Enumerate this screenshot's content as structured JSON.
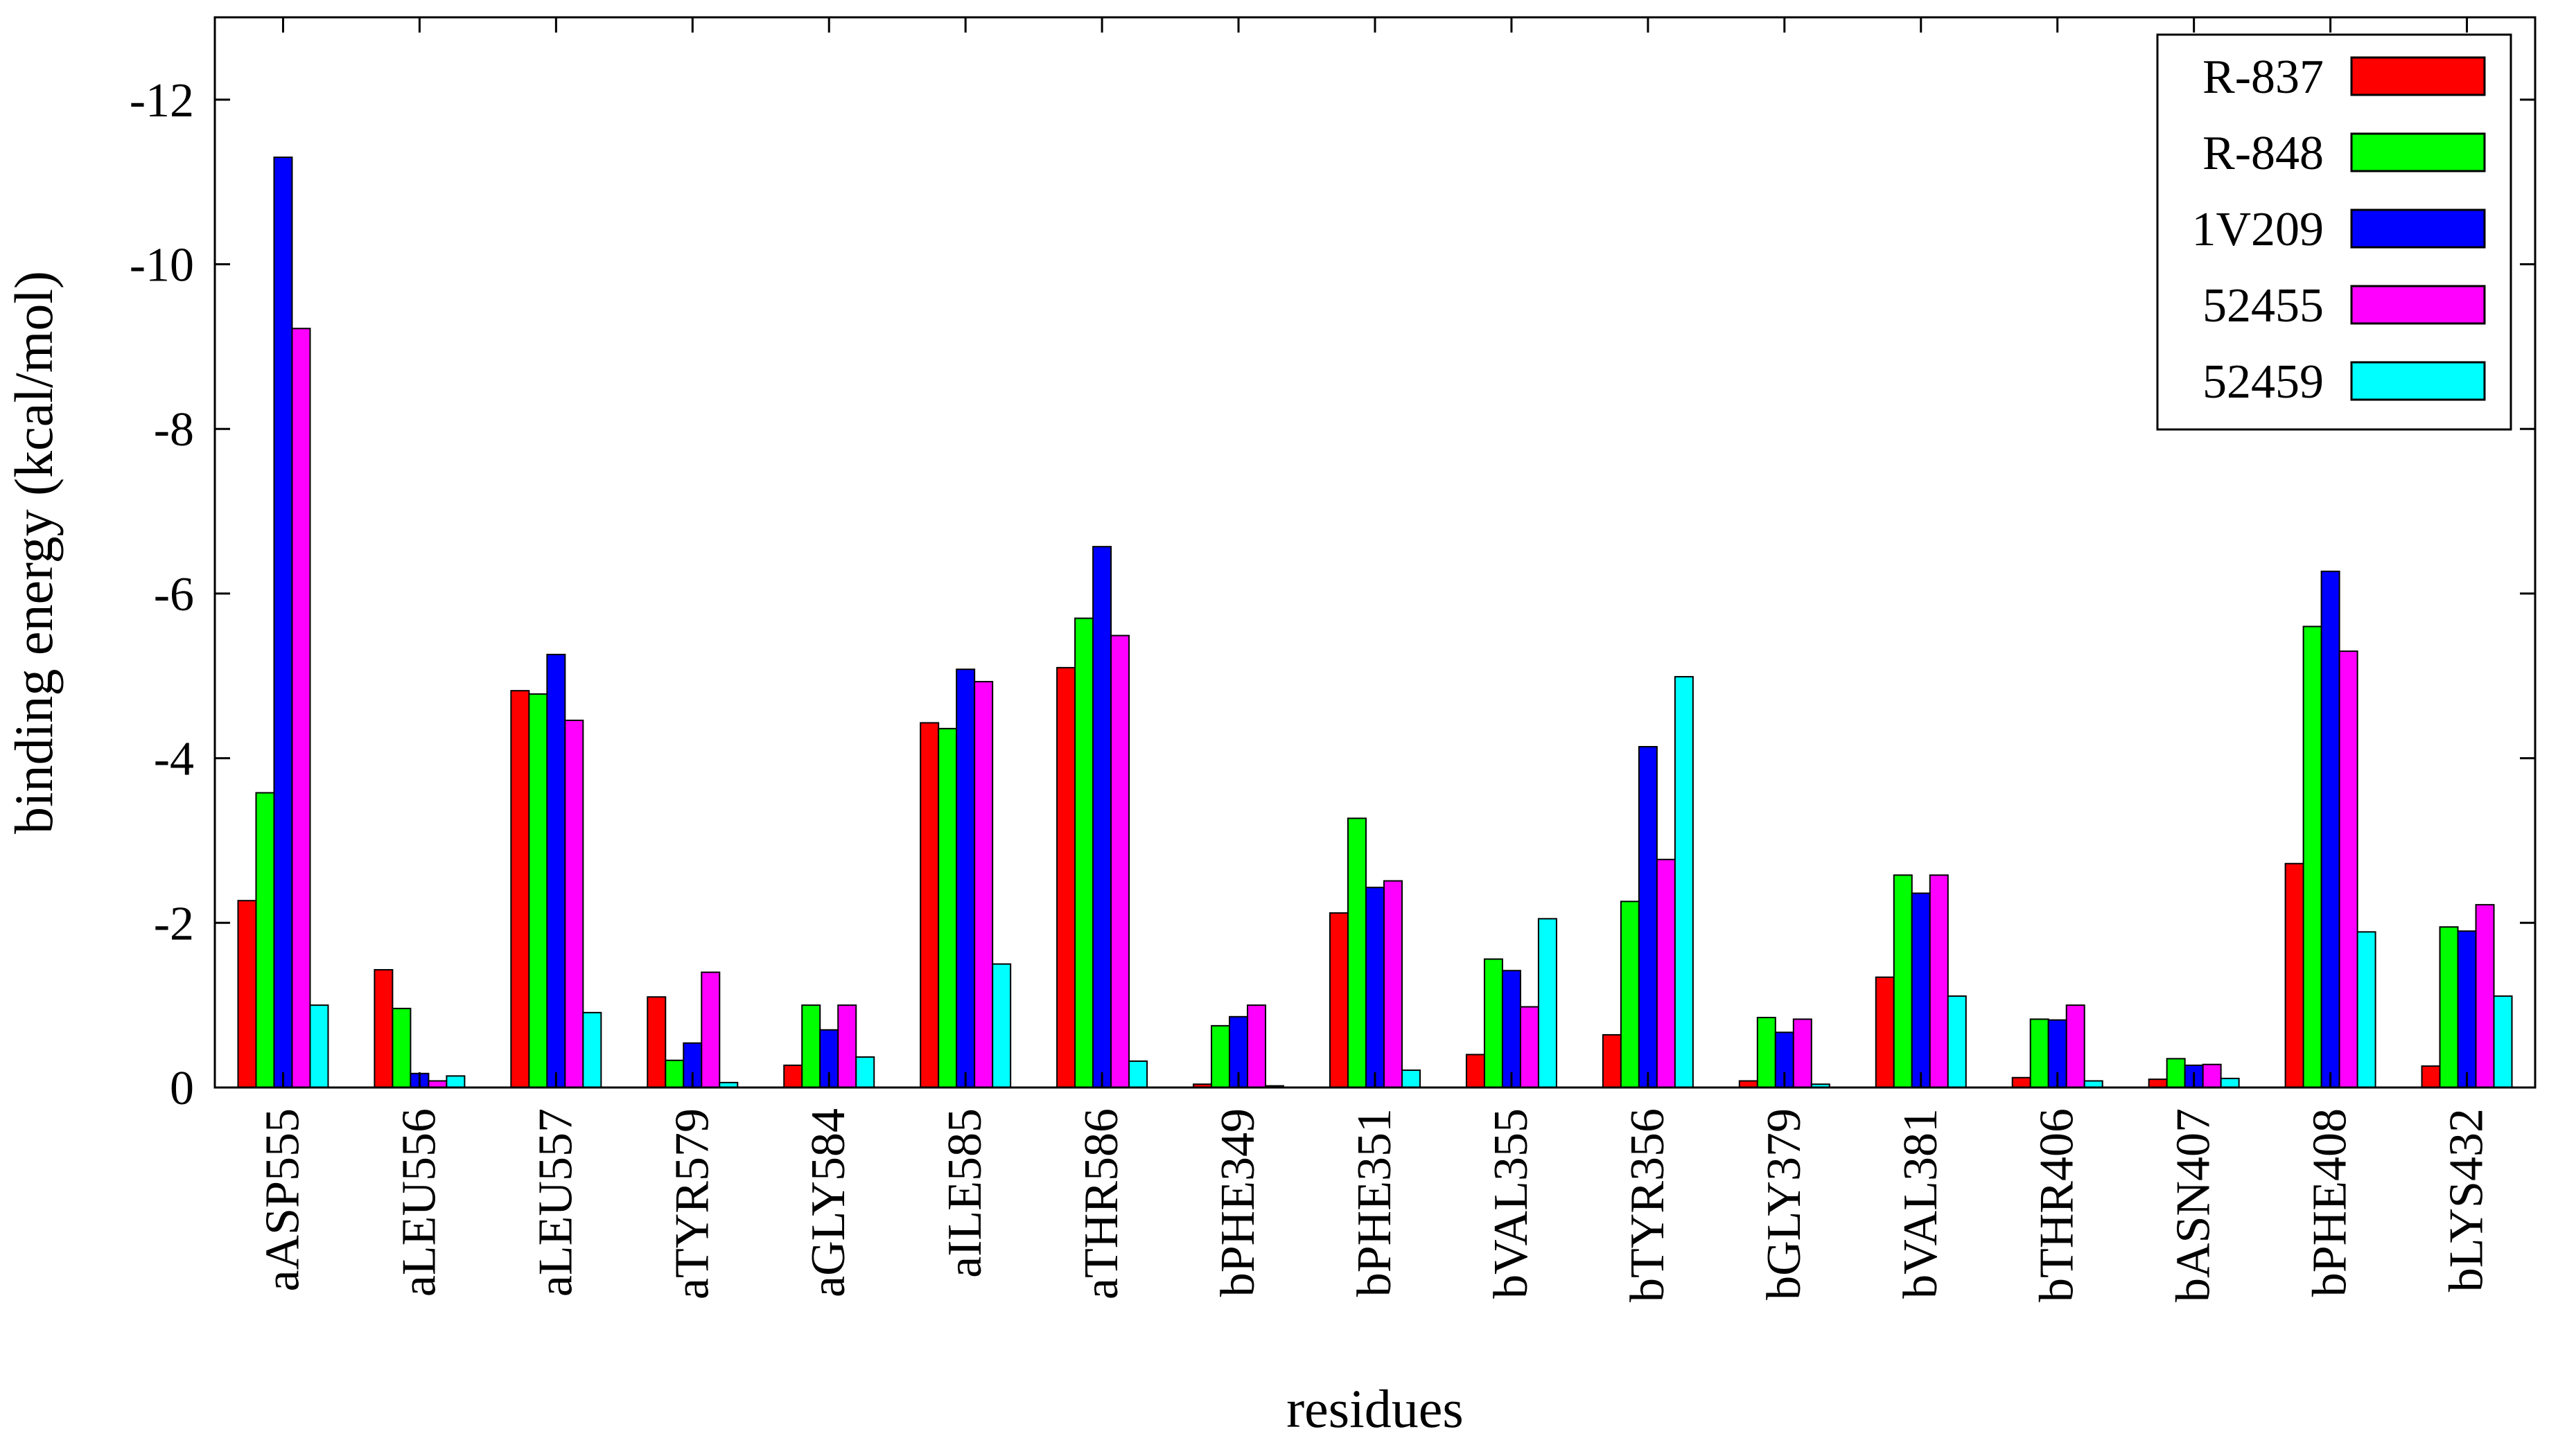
{
  "chart_data": {
    "type": "bar",
    "xlabel": "residues",
    "ylabel": "binding energy (kcal/mol)",
    "ylim": [
      0,
      -13
    ],
    "y_ticks": [
      0,
      -2,
      -4,
      -6,
      -8,
      -10,
      -12
    ],
    "y_tick_labels": [
      "0",
      "-2",
      "-4",
      "-6",
      "-8",
      "-10",
      "-12"
    ],
    "grid": false,
    "legend_position": "top-right",
    "categories": [
      "aASP555",
      "aLEU556",
      "aLEU557",
      "aTYR579",
      "aGLY584",
      "aILE585",
      "aTHR586",
      "bPHE349",
      "bPHE351",
      "bVAL355",
      "bTYR356",
      "bGLY379",
      "bVAL381",
      "bTHR406",
      "bASN407",
      "bPHE408",
      "bLYS432"
    ],
    "series": [
      {
        "name": "R-837",
        "color": "#ff0000",
        "values": [
          -2.27,
          -1.43,
          -4.82,
          -1.1,
          -0.27,
          -4.43,
          -5.1,
          -0.04,
          -2.12,
          -0.4,
          -0.64,
          -0.08,
          -1.34,
          -0.12,
          -0.1,
          -2.72,
          -0.26
        ]
      },
      {
        "name": "R-848",
        "color": "#00ff00",
        "values": [
          -3.58,
          -0.96,
          -4.78,
          -0.33,
          -1.0,
          -4.36,
          -5.7,
          -0.75,
          -3.27,
          -1.56,
          -2.26,
          -0.85,
          -2.58,
          -0.83,
          -0.35,
          -5.6,
          -1.95
        ]
      },
      {
        "name": "1V209",
        "color": "#0000ff",
        "values": [
          -11.3,
          -0.17,
          -5.26,
          -0.54,
          -0.7,
          -5.08,
          -6.57,
          -0.86,
          -2.43,
          -1.42,
          -4.14,
          -0.67,
          -2.36,
          -0.82,
          -0.27,
          -6.27,
          -1.9
        ]
      },
      {
        "name": "52455",
        "color": "#ff00ff",
        "values": [
          -9.22,
          -0.08,
          -4.46,
          -1.4,
          -1.0,
          -4.93,
          -5.49,
          -1.0,
          -2.51,
          -0.98,
          -2.77,
          -0.83,
          -2.58,
          -1.0,
          -0.28,
          -5.3,
          -2.22
        ]
      },
      {
        "name": "52459",
        "color": "#00ffff",
        "values": [
          -1.0,
          -0.14,
          -0.91,
          -0.06,
          -0.37,
          -1.5,
          -0.32,
          -0.02,
          -0.21,
          -2.05,
          -4.99,
          -0.04,
          -1.11,
          -0.08,
          -0.11,
          -1.89,
          -1.11
        ]
      }
    ]
  }
}
